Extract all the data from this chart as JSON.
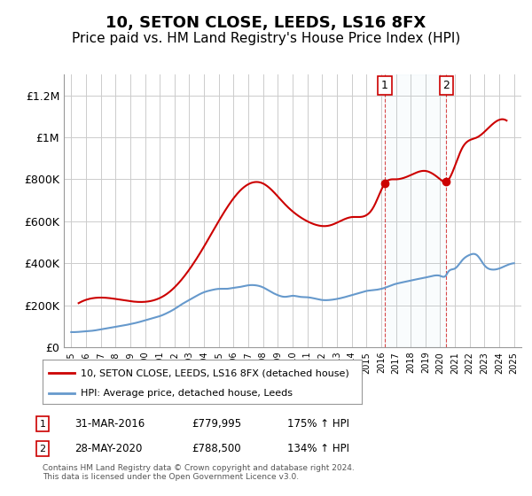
{
  "title": "10, SETON CLOSE, LEEDS, LS16 8FX",
  "subtitle": "Price paid vs. HM Land Registry's House Price Index (HPI)",
  "title_fontsize": 13,
  "subtitle_fontsize": 11,
  "background_color": "#ffffff",
  "plot_bg_color": "#ffffff",
  "grid_color": "#cccccc",
  "ylim": [
    0,
    1300000
  ],
  "yticks": [
    0,
    200000,
    400000,
    600000,
    800000,
    1000000,
    1200000
  ],
  "ytick_labels": [
    "£0",
    "£200K",
    "£400K",
    "£600K",
    "£800K",
    "£1M",
    "£1.2M"
  ],
  "x_start_year": 1995,
  "x_end_year": 2025,
  "line1_color": "#cc0000",
  "line2_color": "#6699cc",
  "legend_line1": "10, SETON CLOSE, LEEDS, LS16 8FX (detached house)",
  "legend_line2": "HPI: Average price, detached house, Leeds",
  "marker1_year": 2016.25,
  "marker1_value": 779995,
  "marker1_label": "1",
  "marker2_year": 2020.42,
  "marker2_value": 788500,
  "marker2_label": "2",
  "annotation1_date": "31-MAR-2016",
  "annotation1_price": "£779,995",
  "annotation1_hpi": "175% ↑ HPI",
  "annotation2_date": "28-MAY-2020",
  "annotation2_price": "£788,500",
  "annotation2_hpi": "134% ↑ HPI",
  "footer": "Contains HM Land Registry data © Crown copyright and database right 2024.\nThis data is licensed under the Open Government Licence v3.0.",
  "hpi_data_years": [
    1995,
    1995.5,
    1996,
    1996.5,
    1997,
    1997.5,
    1998,
    1998.5,
    1999,
    1999.5,
    2000,
    2000.5,
    2001,
    2001.5,
    2002,
    2002.5,
    2003,
    2003.5,
    2004,
    2004.5,
    2005,
    2005.5,
    2006,
    2006.5,
    2007,
    2007.5,
    2008,
    2008.5,
    2009,
    2009.5,
    2010,
    2010.5,
    2011,
    2011.5,
    2012,
    2012.5,
    2013,
    2013.5,
    2014,
    2014.5,
    2015,
    2015.5,
    2016,
    2016.25,
    2016.5,
    2017,
    2017.5,
    2018,
    2018.5,
    2019,
    2019.5,
    2020,
    2020.42,
    2020.5,
    2021,
    2021.5,
    2022,
    2022.5,
    2023,
    2023.5,
    2024,
    2024.5,
    2025
  ],
  "hpi_values": [
    72000,
    73000,
    76000,
    79000,
    85000,
    91000,
    97000,
    103000,
    110000,
    118000,
    128000,
    138000,
    148000,
    163000,
    182000,
    205000,
    225000,
    245000,
    262000,
    272000,
    278000,
    278000,
    283000,
    288000,
    295000,
    295000,
    285000,
    265000,
    248000,
    240000,
    245000,
    240000,
    238000,
    232000,
    225000,
    225000,
    230000,
    238000,
    248000,
    258000,
    268000,
    272000,
    278000,
    283000,
    290000,
    302000,
    310000,
    318000,
    325000,
    332000,
    340000,
    340000,
    345000,
    355000,
    375000,
    415000,
    440000,
    438000,
    390000,
    370000,
    375000,
    390000,
    400000
  ],
  "property_data_years": [
    1995.5,
    1998.0,
    2001.5,
    2004.0,
    2006.5,
    2008.0,
    2009.5,
    2011.0,
    2012.5,
    2014.0,
    2015.5,
    2016.25,
    2017.0,
    2018.0,
    2019.0,
    2020.0,
    2020.42,
    2021.5,
    2022.5,
    2023.5,
    2024.5
  ],
  "property_values": [
    210000,
    230000,
    255000,
    480000,
    750000,
    780000,
    680000,
    600000,
    580000,
    620000,
    670000,
    779995,
    800000,
    820000,
    840000,
    800000,
    788500,
    950000,
    1000000,
    1060000,
    1080000
  ]
}
